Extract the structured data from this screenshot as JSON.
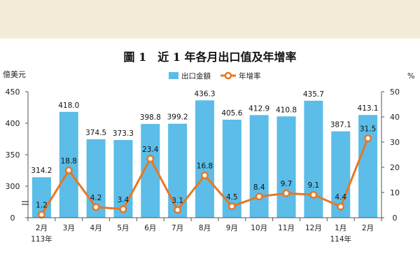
{
  "chart_data": {
    "type": "bar",
    "title": "圖 1　近 1 年各月出口值及年增率",
    "ylabel_left": "億美元",
    "ylabel_right": "%",
    "categories": [
      "2月",
      "3月",
      "4月",
      "5月",
      "6月",
      "7月",
      "8月",
      "9月",
      "10月",
      "11月",
      "12月",
      "1月",
      "2月"
    ],
    "year_labels": [
      "113年",
      "",
      "",
      "",
      "",
      "",
      "",
      "",
      "",
      "",
      "",
      "114年",
      ""
    ],
    "left_ticks": [
      "0",
      "300",
      "350",
      "400",
      "450"
    ],
    "right_ticks": [
      "0",
      "10",
      "20",
      "30",
      "40",
      "50"
    ],
    "ylim_left": [
      0,
      450
    ],
    "ylim_right": [
      0,
      50
    ],
    "axis_break": "left",
    "legend_position": "top-right",
    "series": [
      {
        "name": "出口金額",
        "type": "bar",
        "axis": "left",
        "color": "#5bbde8",
        "values": [
          314.2,
          418.0,
          374.5,
          373.3,
          398.8,
          399.2,
          436.3,
          405.6,
          412.9,
          410.8,
          435.7,
          387.1,
          413.1
        ],
        "labels": [
          "314.2",
          "418.0",
          "374.5",
          "373.3",
          "398.8",
          "399.2",
          "436.3",
          "405.6",
          "412.9",
          "410.8",
          "435.7",
          "387.1",
          "413.1"
        ]
      },
      {
        "name": "年增率",
        "type": "line",
        "axis": "right",
        "color": "#e87722",
        "values": [
          1.2,
          18.8,
          4.2,
          3.4,
          23.4,
          3.1,
          16.8,
          4.5,
          8.4,
          9.7,
          9.1,
          4.4,
          31.5
        ],
        "labels": [
          "1.2",
          "18.8",
          "4.2",
          "3.4",
          "23.4",
          "3.1",
          "16.8",
          "4.5",
          "8.4",
          "9.7",
          "9.1",
          "4.4",
          "31.5"
        ]
      }
    ]
  }
}
